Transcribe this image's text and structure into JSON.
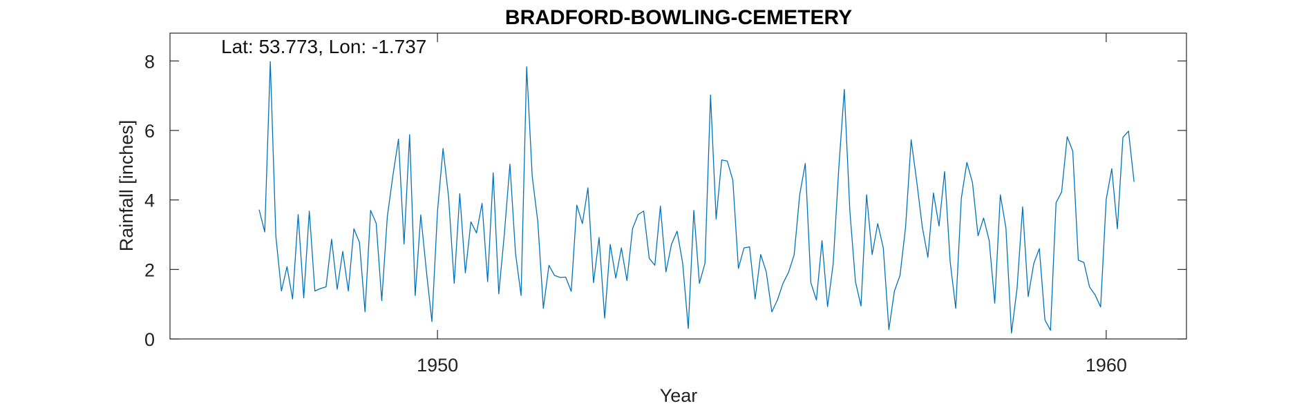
{
  "colors": {
    "line": "#0072BD",
    "axis": "#262626",
    "background": "#ffffff"
  },
  "chart_data": {
    "type": "line",
    "title": "BRADFORD-BOWLING-CEMETERY",
    "annotation": "Lat: 53.773, Lon: -1.737",
    "xlabel": "Year",
    "ylabel": "Rainfall [inches]",
    "xlim": [
      1946,
      1961.2
    ],
    "ylim": [
      0,
      8.8
    ],
    "xticks": [
      1950,
      1960
    ],
    "xtick_labels": [
      "1950",
      "1960"
    ],
    "yticks": [
      0,
      2,
      4,
      6,
      8
    ],
    "ytick_labels": [
      "0",
      "2",
      "4",
      "6",
      "8"
    ],
    "grid": false,
    "series": [
      {
        "x_start": "1947-05",
        "interval": "monthly",
        "values": [
          3.72,
          3.08,
          7.98,
          2.95,
          1.38,
          2.08,
          1.15,
          3.58,
          1.18,
          3.68,
          1.38,
          1.45,
          1.5,
          2.87,
          1.43,
          2.52,
          1.38,
          3.17,
          2.78,
          0.78,
          3.7,
          3.33,
          1.1,
          3.52,
          4.7,
          5.75,
          2.73,
          5.88,
          1.25,
          3.57,
          1.97,
          0.5,
          3.67,
          5.48,
          4.07,
          1.6,
          4.18,
          1.9,
          3.37,
          3.05,
          3.9,
          1.65,
          4.78,
          1.3,
          3.02,
          5.03,
          2.47,
          1.25,
          7.83,
          4.68,
          3.38,
          0.88,
          2.12,
          1.83,
          1.77,
          1.78,
          1.37,
          3.85,
          3.32,
          4.35,
          1.62,
          2.92,
          0.6,
          2.72,
          1.75,
          2.62,
          1.68,
          3.17,
          3.58,
          3.68,
          2.32,
          2.12,
          3.82,
          1.93,
          2.73,
          3.1,
          2.18,
          0.3,
          3.7,
          1.6,
          2.18,
          7.02,
          3.45,
          5.15,
          5.12,
          4.57,
          2.03,
          2.62,
          2.65,
          1.15,
          2.43,
          1.93,
          0.78,
          1.12,
          1.6,
          1.92,
          2.42,
          4.15,
          5.05,
          1.62,
          1.12,
          2.83,
          0.93,
          2.15,
          4.88,
          7.18,
          3.68,
          1.65,
          0.95,
          4.15,
          2.43,
          3.32,
          2.62,
          0.27,
          1.38,
          1.83,
          3.22,
          5.73,
          4.53,
          3.22,
          2.35,
          4.2,
          3.25,
          4.82,
          2.22,
          0.88,
          4.05,
          5.08,
          4.5,
          2.97,
          3.48,
          2.83,
          1.03,
          4.15,
          3.2,
          0.17,
          1.45,
          3.8,
          1.22,
          2.17,
          2.6,
          0.55,
          0.25,
          3.92,
          4.23,
          5.82,
          5.4,
          2.27,
          2.2,
          1.5,
          1.27,
          0.92,
          4.02,
          4.9,
          3.17,
          5.8,
          5.98,
          4.52
        ]
      }
    ]
  }
}
